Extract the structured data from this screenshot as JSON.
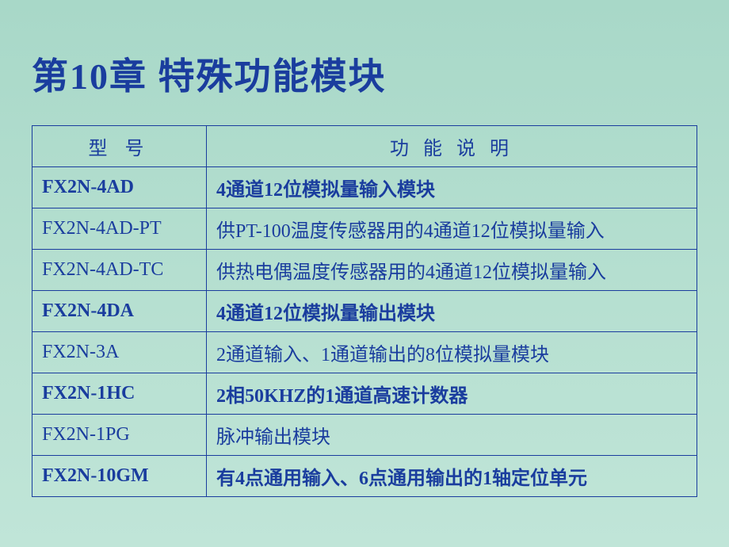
{
  "title": "第10章 特殊功能模块",
  "table": {
    "headers": {
      "model": "型 号",
      "function": "功 能 说 明"
    },
    "rows": [
      {
        "model": "FX2N-4AD",
        "description": " 4通道12位模拟量输入模块",
        "bold": true
      },
      {
        "model": "FX2N-4AD-PT",
        "description": "供PT-100温度传感器用的4通道12位模拟量输入",
        "bold": false
      },
      {
        "model": "FX2N-4AD-TC",
        "description": "供热电偶温度传感器用的4通道12位模拟量输入",
        "bold": false
      },
      {
        "model": "FX2N-4DA",
        "description": " 4通道12位模拟量输出模块",
        "bold": true
      },
      {
        "model": "FX2N-3A",
        "description": "2通道输入、1通道输出的8位模拟量模块",
        "bold": false
      },
      {
        "model": "FX2N-1HC",
        "description": " 2相50KHZ的1通道高速计数器",
        "bold": true
      },
      {
        "model": "FX2N-1PG",
        "description": "脉冲输出模块",
        "bold": false
      },
      {
        "model": "FX2N-10GM",
        "description": " 有4点通用输入、6点通用输出的1轴定位单元",
        "bold": true
      }
    ]
  },
  "colors": {
    "text": "#1a3d9e",
    "border": "#1a3d9e",
    "bg_start": "#a8d8c8",
    "bg_end": "#c0e5d8"
  }
}
